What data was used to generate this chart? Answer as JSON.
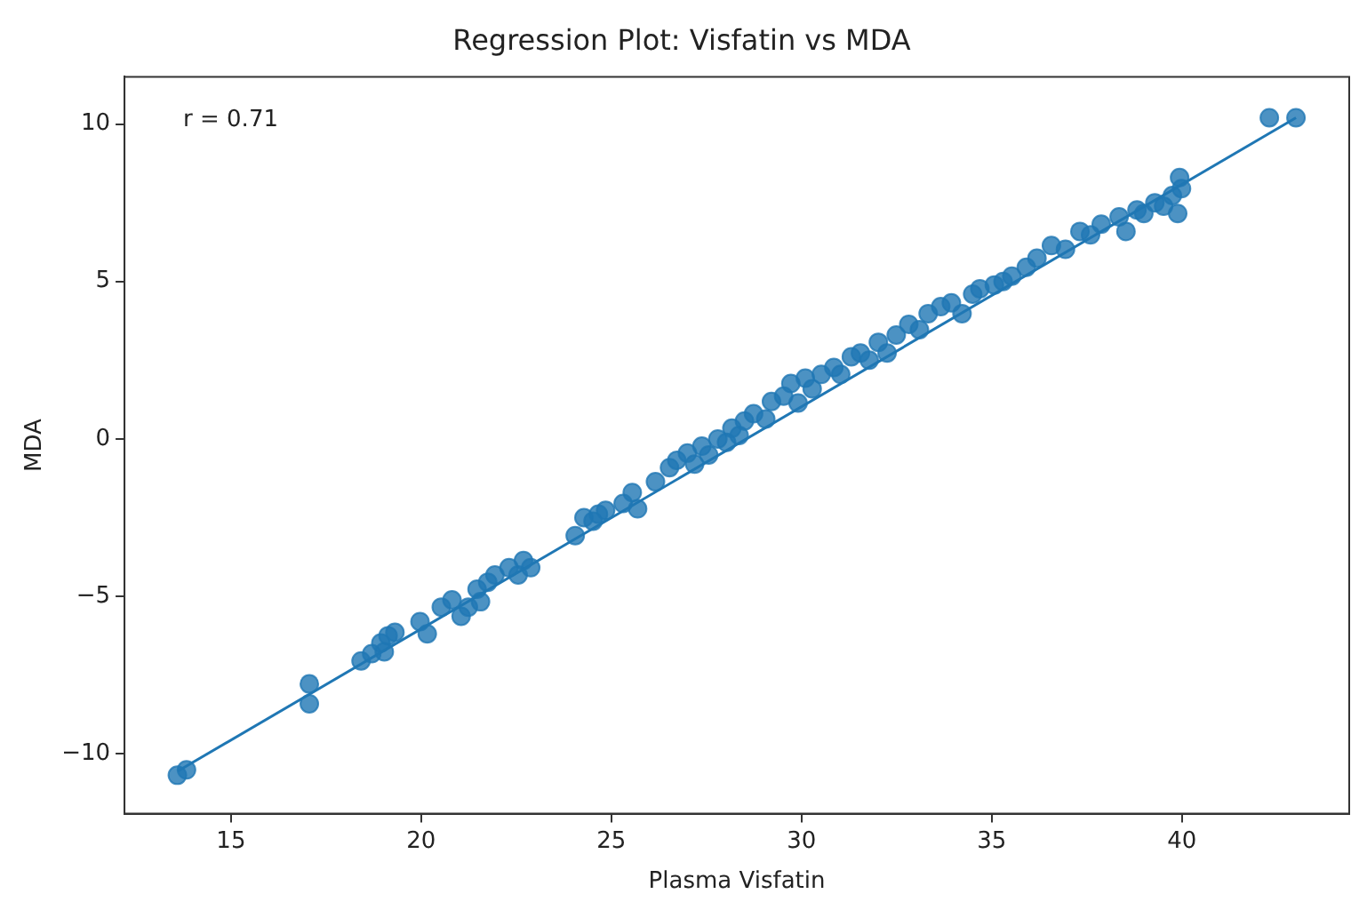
{
  "chart_data": {
    "type": "scatter",
    "title": "Regression Plot: Visfatin vs MDA",
    "xlabel": "Plasma Visfatin",
    "ylabel": "MDA",
    "xlim": [
      12.2,
      44.4
    ],
    "ylim": [
      -11.9,
      11.5
    ],
    "xticks": [
      15,
      20,
      25,
      30,
      35,
      40
    ],
    "yticks": [
      -10,
      -5,
      0,
      5,
      10
    ],
    "grid": false,
    "legend": false,
    "marker": "circle",
    "annotations": [
      "r = 0.71"
    ],
    "series": [
      {
        "color": "#1f77b4",
        "x": [
          13.59,
          13.83,
          17.06,
          17.06,
          18.42,
          18.7,
          18.94,
          19.13,
          19.03,
          19.31,
          19.97,
          20.16,
          20.53,
          20.81,
          21.05,
          21.24,
          21.47,
          21.56,
          21.75,
          21.94,
          22.31,
          22.55,
          22.69,
          22.88,
          24.05,
          24.28,
          24.52,
          24.66,
          24.85,
          25.31,
          25.55,
          25.69,
          26.16,
          26.53,
          26.72,
          27.0,
          27.19,
          27.38,
          27.56,
          27.8,
          28.03,
          28.17,
          28.36,
          28.5,
          28.74,
          29.06,
          29.21,
          29.53,
          29.72,
          29.91,
          30.1,
          30.28,
          30.52,
          30.85,
          31.03,
          31.31,
          31.55,
          31.78,
          32.02,
          32.25,
          32.49,
          32.82,
          33.1,
          33.33,
          33.66,
          33.94,
          34.22,
          34.5,
          34.69,
          35.07,
          35.3,
          35.53,
          35.91,
          36.19,
          36.57,
          36.94,
          37.32,
          37.6,
          37.88,
          38.35,
          38.53,
          38.82,
          39.0,
          39.29,
          39.52,
          39.75,
          39.89,
          39.94,
          39.99,
          42.3,
          43.0
        ],
        "values": [
          -10.68,
          -10.51,
          -7.78,
          -8.41,
          -7.05,
          -6.82,
          -6.48,
          -6.25,
          -6.76,
          -6.14,
          -5.8,
          -6.19,
          -5.34,
          -5.11,
          -5.63,
          -5.34,
          -4.77,
          -5.17,
          -4.55,
          -4.32,
          -4.09,
          -4.32,
          -3.86,
          -4.09,
          -3.07,
          -2.5,
          -2.61,
          -2.39,
          -2.27,
          -2.05,
          -1.7,
          -2.22,
          -1.36,
          -0.91,
          -0.68,
          -0.45,
          -0.8,
          -0.23,
          -0.51,
          0.0,
          -0.11,
          0.34,
          0.11,
          0.57,
          0.8,
          0.63,
          1.19,
          1.36,
          1.76,
          1.14,
          1.93,
          1.59,
          2.05,
          2.27,
          2.05,
          2.61,
          2.73,
          2.5,
          3.07,
          2.73,
          3.3,
          3.64,
          3.47,
          3.98,
          4.2,
          4.32,
          3.98,
          4.6,
          4.77,
          4.89,
          5.0,
          5.17,
          5.45,
          5.74,
          6.14,
          6.02,
          6.59,
          6.48,
          6.82,
          7.05,
          6.59,
          7.27,
          7.16,
          7.5,
          7.39,
          7.73,
          7.16,
          8.3,
          7.95,
          10.2,
          10.2
        ]
      },
      {
        "type": "line",
        "color": "#1f77b4",
        "marker": "none",
        "x": [
          13.6,
          43.0
        ],
        "values": [
          -10.55,
          10.2
        ]
      }
    ]
  }
}
